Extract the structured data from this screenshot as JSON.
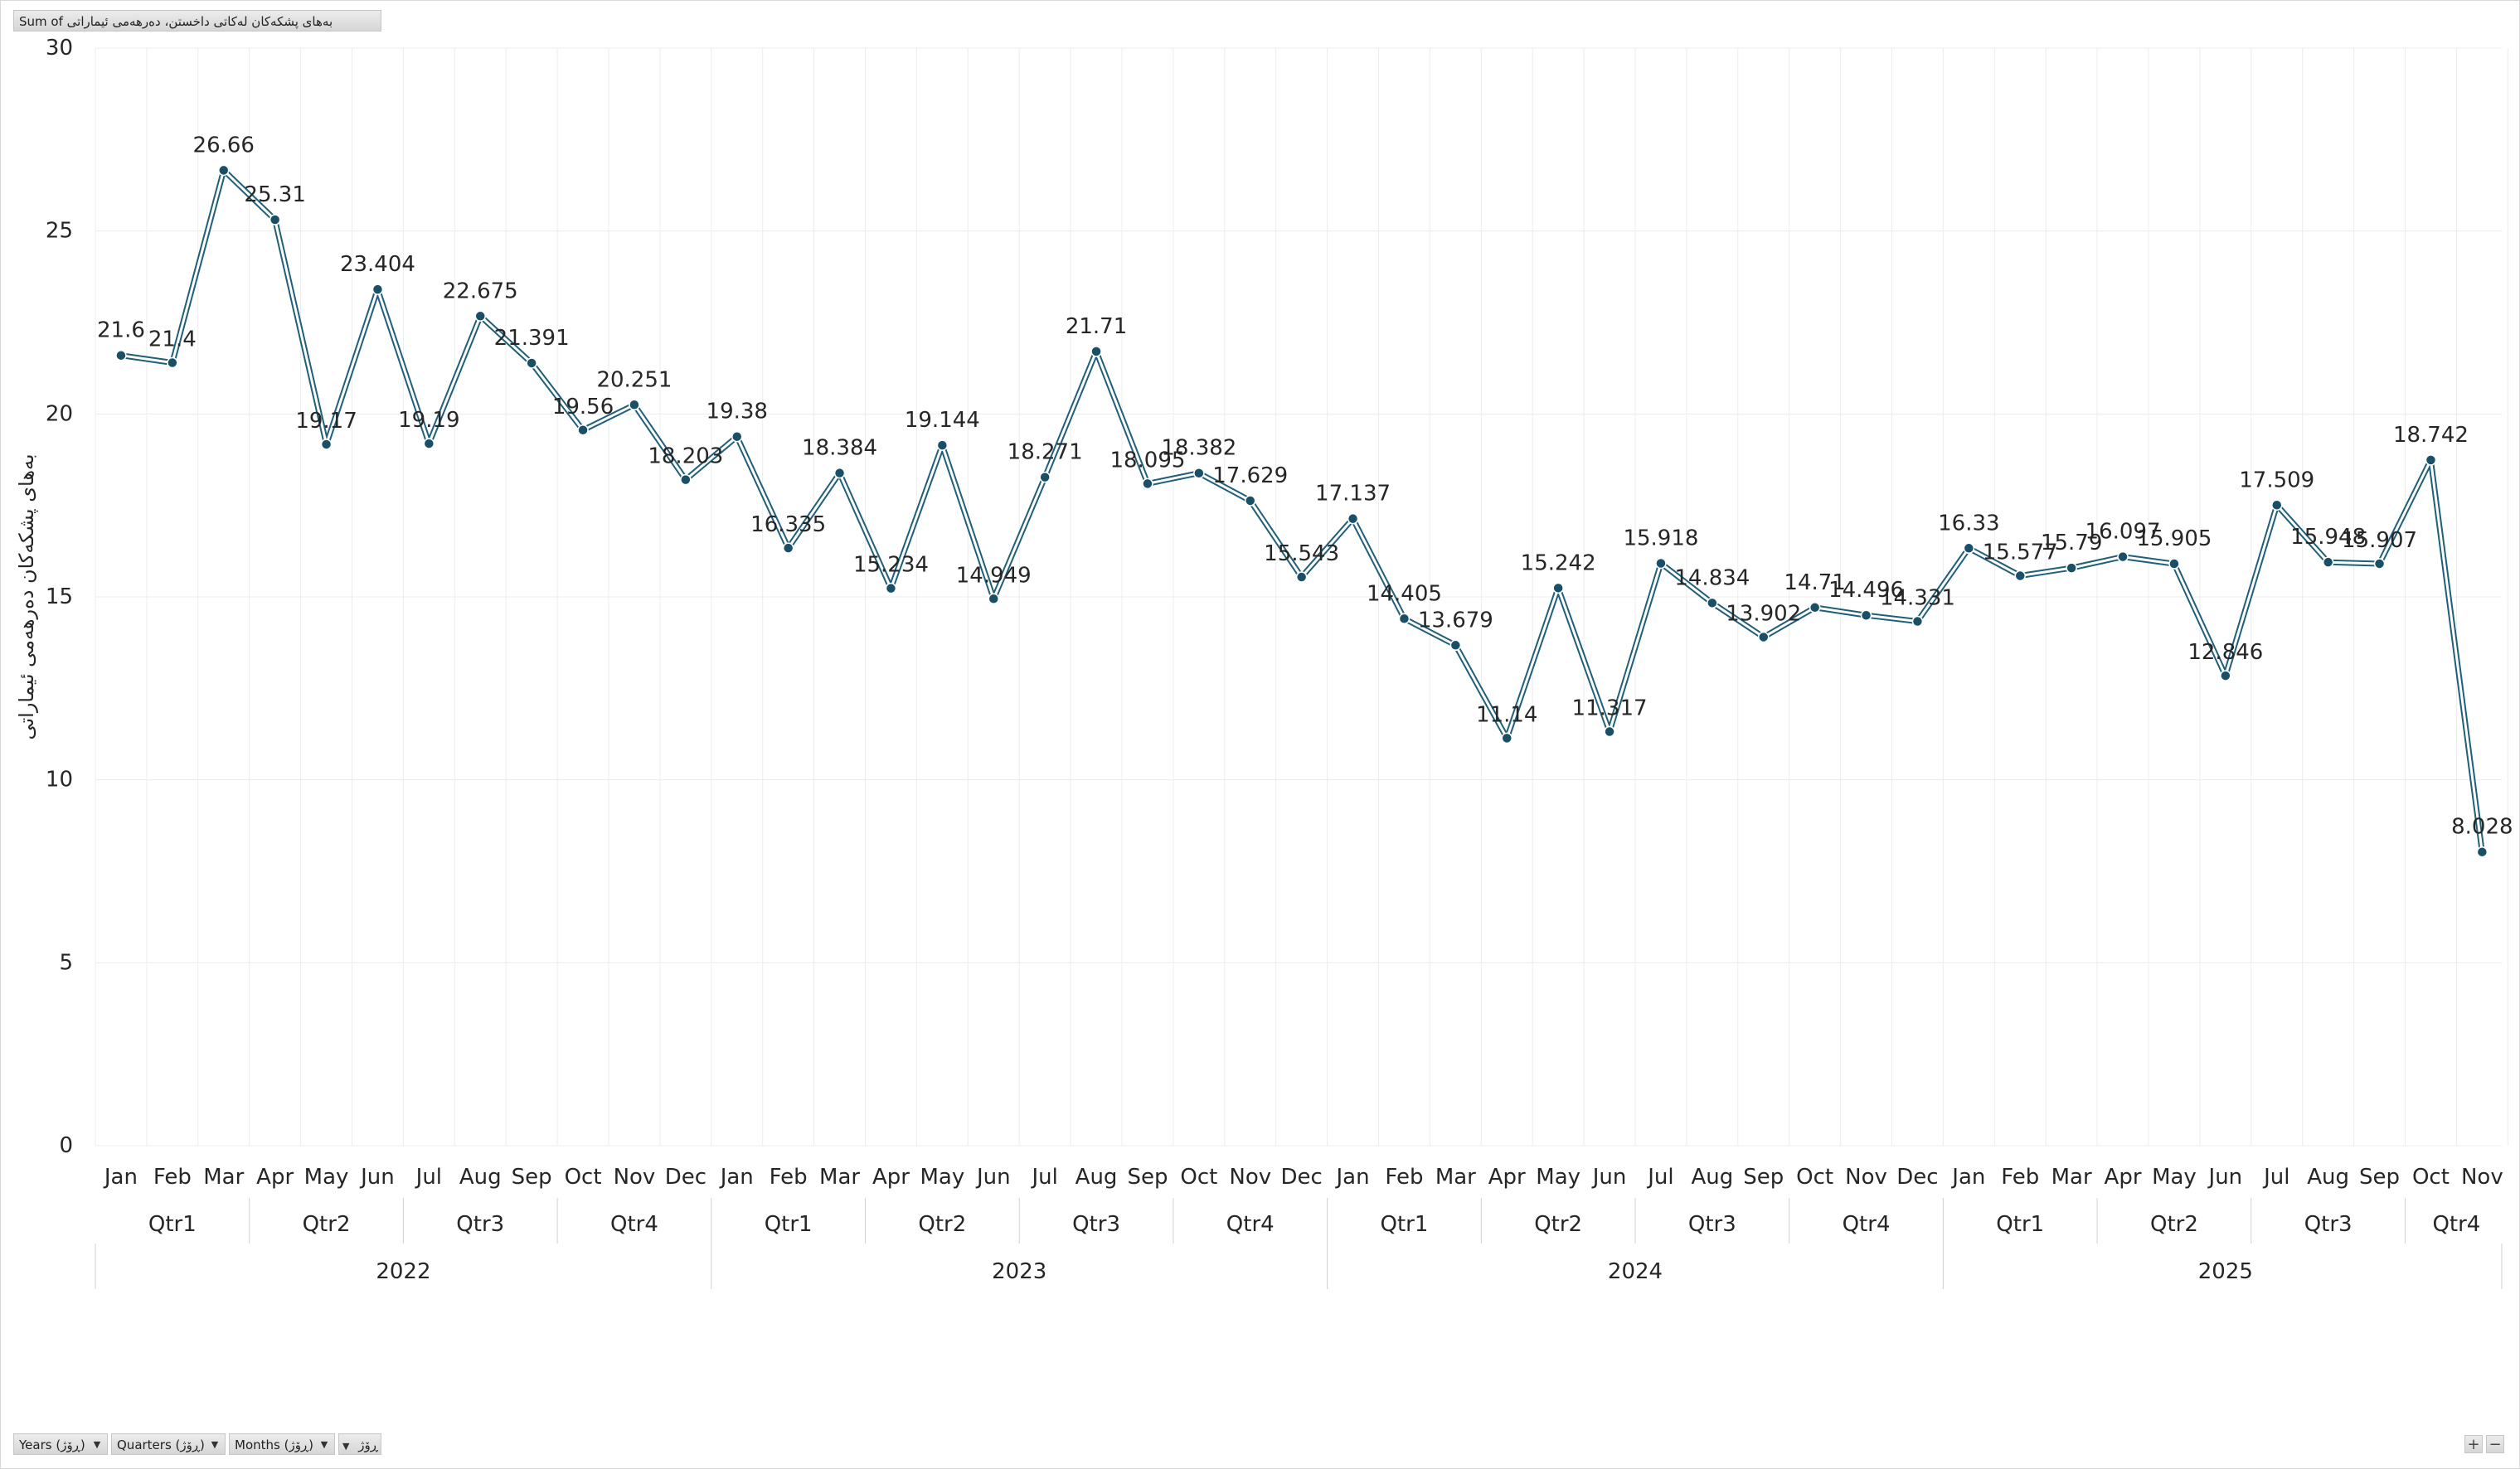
{
  "pivot": {
    "value_field": "Sum of بەهای پشکەکان لەکاتی داخستن، دەرهەمی ئیماراتی",
    "axis_fields": [
      {
        "label": "Years (ڕۆژ)",
        "icon": "dropdown-arrow-icon"
      },
      {
        "label": "Quarters (ڕۆژ)",
        "icon": "dropdown-arrow-icon"
      },
      {
        "label": "Months (ڕۆژ)",
        "icon": "dropdown-arrow-icon"
      },
      {
        "label": "ڕۆژ",
        "icon": "dropdown-arrow-icon"
      }
    ],
    "zoom_in": "+",
    "zoom_out": "−"
  },
  "colors": {
    "line": "#1f5f7a",
    "line_outline": "#ffffff",
    "marker": "#1a4f68",
    "grid": "#ececec",
    "text": "#262626"
  },
  "chart_data": {
    "type": "line",
    "ylabel": "بەهای پشکەکان دەرهەمی ئیماراتی",
    "xlabel": "",
    "ylim": [
      0,
      30
    ],
    "y_ticks": [
      0,
      5,
      10,
      15,
      20,
      25,
      30
    ],
    "grid": true,
    "legend": "none",
    "years": [
      "2022",
      "2023",
      "2024",
      "2025"
    ],
    "quarters": [
      "Qtr1",
      "Qtr2",
      "Qtr3",
      "Qtr4"
    ],
    "categories": [
      "Jan",
      "Feb",
      "Mar",
      "Apr",
      "May",
      "Jun",
      "Jul",
      "Aug",
      "Sep",
      "Oct",
      "Nov",
      "Dec",
      "Jan",
      "Feb",
      "Mar",
      "Apr",
      "May",
      "Jun",
      "Jul",
      "Aug",
      "Sep",
      "Oct",
      "Nov",
      "Dec",
      "Jan",
      "Feb",
      "Mar",
      "Apr",
      "May",
      "Jun",
      "Jul",
      "Aug",
      "Sep",
      "Oct",
      "Nov",
      "Dec",
      "Jan",
      "Feb",
      "Mar",
      "Apr",
      "May",
      "Jun",
      "Jul",
      "Aug",
      "Sep",
      "Oct",
      "Nov"
    ],
    "values": [
      21.6,
      21.4,
      26.66,
      25.31,
      19.17,
      23.404,
      19.19,
      22.675,
      21.391,
      19.56,
      20.251,
      18.203,
      19.38,
      16.335,
      18.384,
      15.234,
      19.144,
      14.949,
      18.271,
      21.71,
      18.095,
      18.382,
      17.629,
      15.543,
      17.137,
      14.405,
      13.679,
      11.14,
      15.242,
      11.317,
      15.918,
      14.834,
      13.902,
      14.71,
      14.496,
      14.331,
      16.33,
      15.577,
      15.79,
      16.097,
      15.905,
      12.846,
      17.509,
      15.948,
      15.907,
      18.742,
      8.028
    ],
    "data_labels": [
      "21.6",
      "21.4",
      "26.66",
      "25.31",
      "19.17",
      "23.404",
      "19.19",
      "22.675",
      "21.391",
      "19.56",
      "20.251",
      "18.203",
      "19.38",
      "16.335",
      "18.384",
      "15.234",
      "19.144",
      "14.949",
      "18.271",
      "21.71",
      "18.095",
      "18.382",
      "17.629",
      "15.543",
      "17.137",
      "14.405",
      "13.679",
      "11.14",
      "15.242",
      "11.317",
      "15.918",
      "14.834",
      "13.902",
      "14.71",
      "14.496",
      "14.331",
      "16.33",
      "15.577",
      "15.79",
      "16.097",
      "15.905",
      "12.846",
      "17.509",
      "15.948",
      "15.907",
      "18.742",
      "8.028"
    ]
  }
}
